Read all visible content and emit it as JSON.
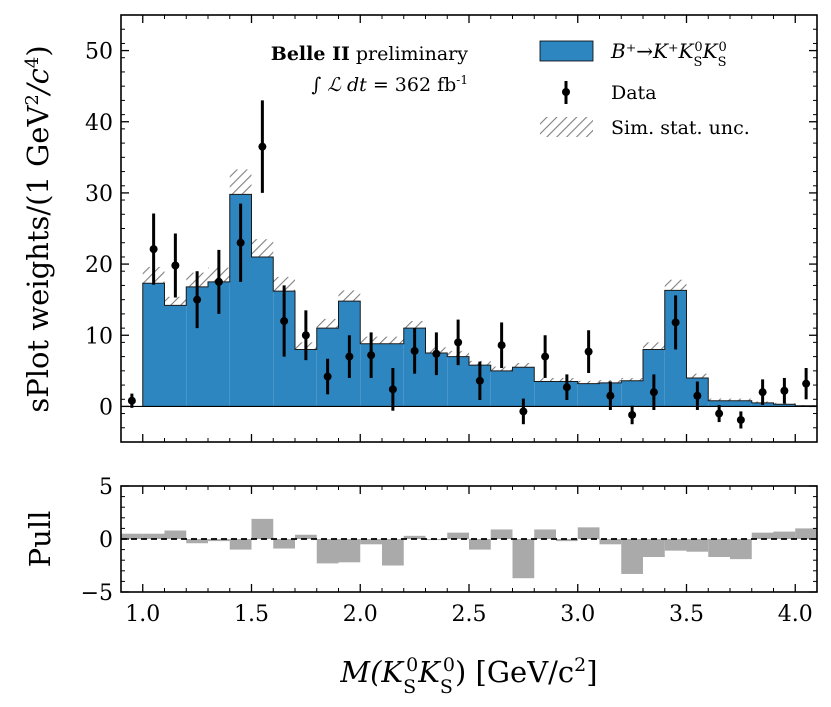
{
  "chart_data": [
    {
      "type": "histogram",
      "xlim": [
        0.9,
        4.1
      ],
      "ylim": [
        -5,
        55
      ],
      "yticks": [
        0,
        10,
        20,
        30,
        40,
        50
      ],
      "ylabel_main": "sPlot weights/(1 GeV",
      "ylabel_sup1": "2",
      "ylabel_mid": "/c",
      "ylabel_sup2": "4",
      "ylabel_end": ")",
      "annotation_bold": "Belle II",
      "annotation_rest": " preliminary",
      "lumi_prefix": "∫ ℒ dt = ",
      "lumi_value": "362 fb",
      "lumi_sup": "-1",
      "legend": {
        "placement": "top-right",
        "signal_label": "B⁺→K⁺K",
        "signal_sub": "S",
        "signal_sup": "0",
        "data_label": "Data",
        "stat_label": "Sim. stat. unc."
      },
      "colors": {
        "signal": "#2e86c1",
        "hatch": "#7f7f7f",
        "data": "#000000",
        "pull": "#aaaaaa"
      },
      "bin_edges": [
        1.0,
        1.1,
        1.2,
        1.3,
        1.4,
        1.5,
        1.6,
        1.7,
        1.8,
        1.9,
        2.0,
        2.1,
        2.2,
        2.3,
        2.4,
        2.5,
        2.6,
        2.7,
        2.8,
        2.9,
        3.0,
        3.1,
        3.2,
        3.3,
        3.4,
        3.5,
        3.6,
        3.7,
        3.8,
        3.9,
        4.0,
        4.1
      ],
      "mc_values": [
        17.3,
        14.2,
        16.8,
        17.5,
        29.8,
        21.0,
        16.2,
        8.0,
        11.0,
        14.8,
        8.8,
        8.8,
        11.0,
        7.5,
        7.0,
        5.8,
        5.0,
        5.5,
        3.5,
        3.5,
        3.2,
        3.3,
        3.6,
        8.0,
        16.3,
        4.0,
        0.8,
        0.8,
        0.5,
        0.3,
        0.1
      ],
      "mc_unc": [
        2.3,
        1.2,
        2.0,
        2.0,
        3.5,
        2.5,
        2.0,
        1.0,
        1.3,
        1.5,
        1.0,
        1.0,
        1.0,
        0.8,
        0.8,
        0.6,
        0.6,
        0.6,
        0.5,
        0.5,
        0.4,
        0.4,
        0.4,
        1.0,
        1.5,
        0.6,
        0.3,
        0.3,
        0.2,
        0.2,
        0.1
      ],
      "data_x": [
        0.95,
        1.05,
        1.15,
        1.25,
        1.35,
        1.45,
        1.55,
        1.65,
        1.75,
        1.85,
        1.95,
        2.05,
        2.15,
        2.25,
        2.35,
        2.45,
        2.55,
        2.65,
        2.75,
        2.85,
        2.95,
        3.05,
        3.15,
        3.25,
        3.35,
        3.45,
        3.55,
        3.65,
        3.75,
        3.85,
        3.95,
        4.05
      ],
      "data_y": [
        0.8,
        22.1,
        19.8,
        15.0,
        17.5,
        23.0,
        36.5,
        12.0,
        10.0,
        4.2,
        7.0,
        7.2,
        2.4,
        7.8,
        7.4,
        9.0,
        3.6,
        8.6,
        -0.7,
        7.0,
        2.7,
        7.7,
        1.5,
        -1.2,
        2.0,
        11.8,
        1.5,
        -1.0,
        -1.9,
        2.0,
        2.2,
        3.2
      ],
      "data_err": [
        1.0,
        5.0,
        4.5,
        4.0,
        4.5,
        5.5,
        6.5,
        5.0,
        3.5,
        2.5,
        3.0,
        3.2,
        3.0,
        3.2,
        3.0,
        3.2,
        2.7,
        3.2,
        1.8,
        3.0,
        1.8,
        3.0,
        2.0,
        1.3,
        2.5,
        3.8,
        2.0,
        1.2,
        1.2,
        1.8,
        1.8,
        2.2
      ],
      "xtick_values": [
        1.0,
        1.5,
        2.0,
        2.5,
        3.0,
        3.5,
        4.0
      ],
      "xtick_labels": [
        "1.0",
        "1.5",
        "2.0",
        "2.5",
        "3.0",
        "3.5",
        "4.0"
      ]
    },
    {
      "type": "bar",
      "ylabel": "Pull",
      "ylim": [
        -5,
        5
      ],
      "yticks": [
        -5,
        0,
        5
      ],
      "ytick_labels": [
        "−5",
        "0",
        "5"
      ],
      "bin_edges": [
        0.9,
        1.0,
        1.1,
        1.2,
        1.3,
        1.4,
        1.5,
        1.6,
        1.7,
        1.8,
        1.9,
        2.0,
        2.1,
        2.2,
        2.3,
        2.4,
        2.5,
        2.6,
        2.7,
        2.8,
        2.9,
        3.0,
        3.1,
        3.2,
        3.3,
        3.4,
        3.5,
        3.6,
        3.7,
        3.8,
        3.9,
        4.0,
        4.1
      ],
      "pull_values": [
        0.5,
        0.5,
        0.8,
        -0.4,
        -0.2,
        -1.0,
        1.9,
        -0.9,
        0.4,
        -2.3,
        -2.2,
        -0.5,
        -2.5,
        0.3,
        -0.1,
        0.6,
        -1.0,
        0.9,
        -3.7,
        0.9,
        -0.2,
        1.1,
        -0.5,
        -3.3,
        -1.7,
        -1.1,
        -1.2,
        -1.7,
        -1.9,
        0.6,
        0.7,
        1.0
      ],
      "xlabel_prefix": "M(K",
      "xlabel_unit": " [GeV/c",
      "xlabel_unit_sup": "2",
      "xlabel_unit_end": "]"
    }
  ]
}
